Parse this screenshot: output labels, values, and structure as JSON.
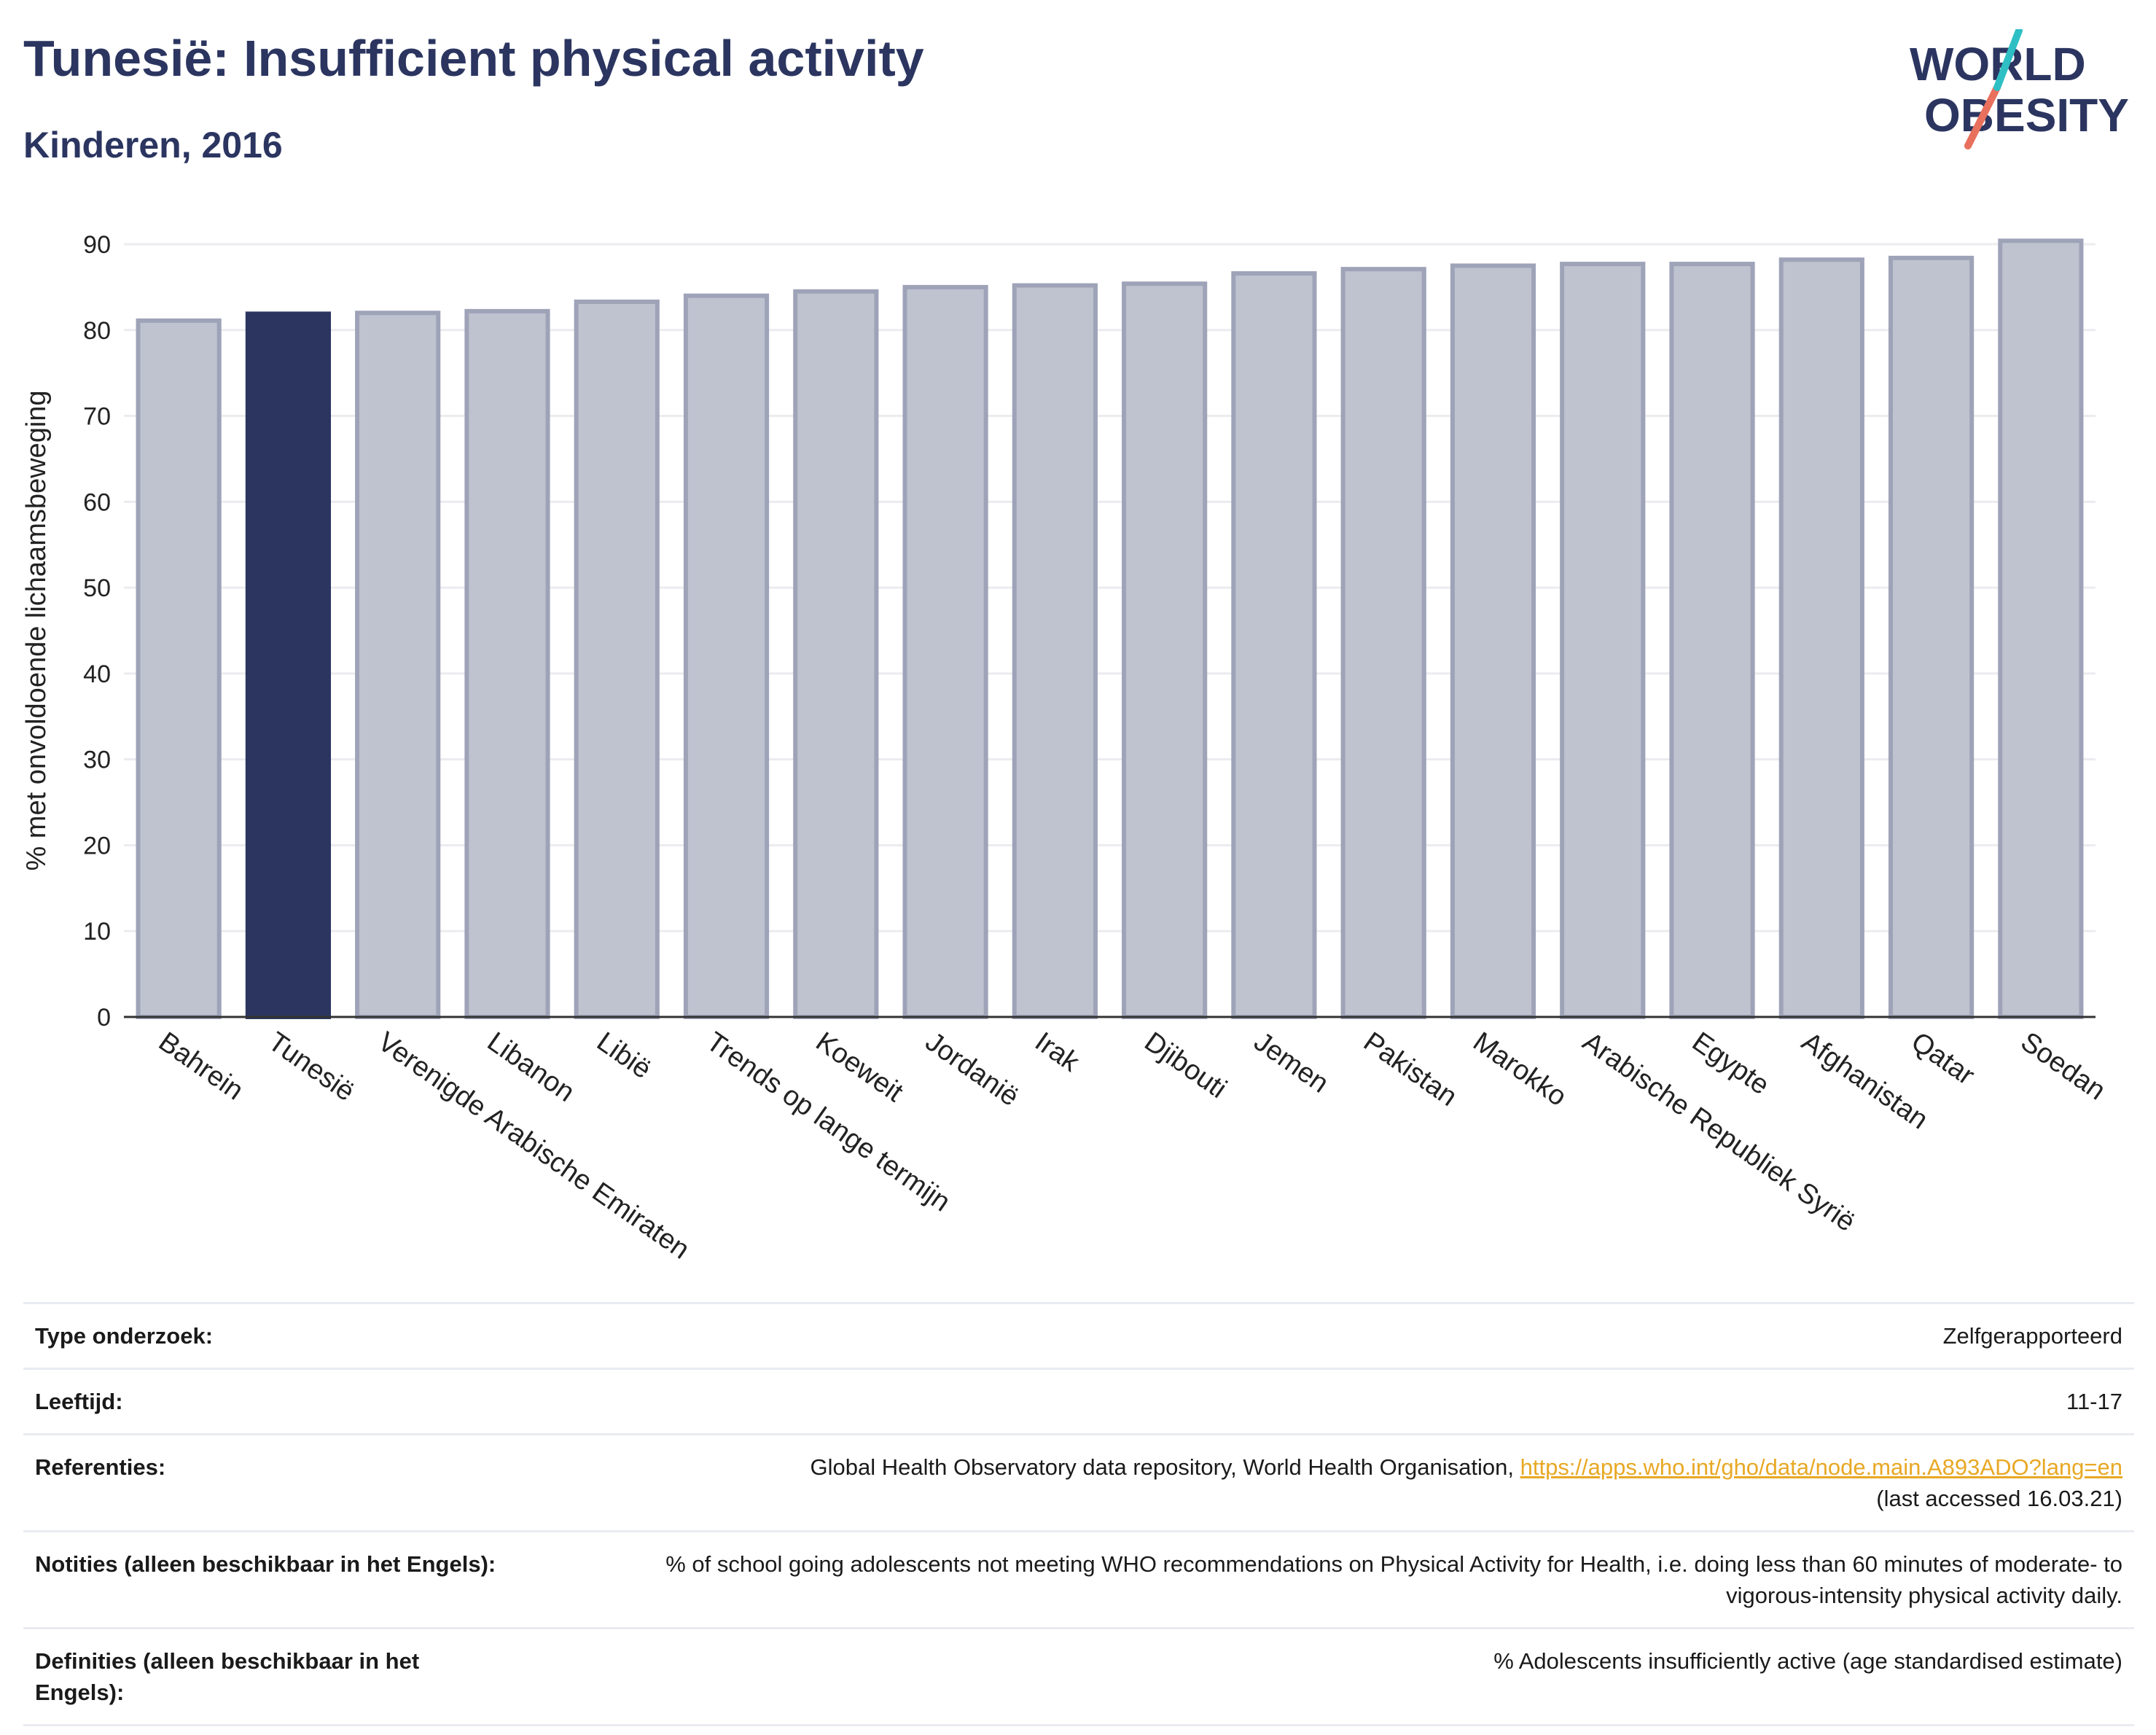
{
  "header": {
    "title": "Tunesië: Insufficient physical activity",
    "subtitle": "Kinderen, 2016"
  },
  "logo": {
    "line1": "WORLD",
    "line2": "OBESITY"
  },
  "colors": {
    "highlight": "#2b3560",
    "bar": "#bfc2cf",
    "bar_edge": "#9ea3b8",
    "grid": "#ececf0",
    "link": "#e8a824"
  },
  "chart_data": {
    "type": "bar",
    "ylabel": "% met onvoldoende lichaamsbeweging",
    "ylim": [
      0,
      90
    ],
    "yticks": [
      0,
      10,
      20,
      30,
      40,
      50,
      60,
      70,
      80,
      90
    ],
    "grid": true,
    "highlight": "Tunesië",
    "categories": [
      "Bahrein",
      "Tunesië",
      "Verenigde Arabische Emiraten",
      "Libanon",
      "Libië",
      "Trends op lange termijn",
      "Koeweit",
      "Jordanië",
      "Irak",
      "Djibouti",
      "Jemen",
      "Pakistan",
      "Marokko",
      "Arabische Republiek Syrië",
      "Egypte",
      "Afghanistan",
      "Qatar",
      "Soedan"
    ],
    "values": [
      81.1,
      81.9,
      82.0,
      82.2,
      83.3,
      84.0,
      84.5,
      85.0,
      85.2,
      85.4,
      86.6,
      87.1,
      87.5,
      87.7,
      87.7,
      88.2,
      88.4,
      90.4
    ]
  },
  "info": {
    "rows": [
      {
        "label": "Type onderzoek:",
        "value": "Zelfgerapporteerd"
      },
      {
        "label": "Leeftijd:",
        "value": "11-17"
      },
      {
        "label": "Referenties:",
        "value": "Global Health Observatory data repository, World Health Organisation,",
        "link": "https://apps.who.int/gho/data/node.main.A893ADO?lang=en",
        "suffix": "(last accessed 16.03.21)"
      },
      {
        "label": "Notities (alleen beschikbaar in het Engels):",
        "value": "% of school going adolescents not meeting WHO recommendations on Physical Activity for Health, i.e. doing less than 60 minutes of moderate- to vigorous-intensity physical activity daily."
      },
      {
        "label": "Definities (alleen beschikbaar in het Engels):",
        "value": "% Adolescents insufficiently active (age standardised estimate)"
      }
    ]
  }
}
